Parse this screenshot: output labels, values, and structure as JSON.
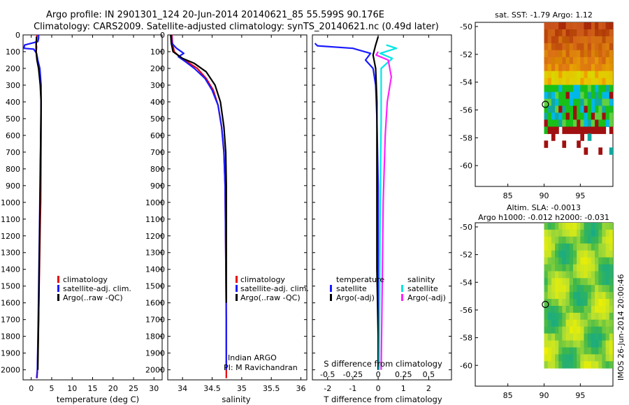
{
  "title": {
    "line1": "Argo profile: IN 2901301_124 20-Jun-2014 20140621_85 55.599S 90.176E",
    "line2": "Climatology: CARS2009. Satellite-adjusted climatology: synTS_20140621.nc (0.49d later)"
  },
  "depth_ticks": [
    "0",
    "100",
    "200",
    "300",
    "400",
    "500",
    "600",
    "700",
    "800",
    "900",
    "1000",
    "1100",
    "1200",
    "1300",
    "1400",
    "1500",
    "1600",
    "1700",
    "1800",
    "1900",
    "2000"
  ],
  "colors": {
    "climatology": "#e8000b",
    "satellite": "#1a1aff",
    "argo": "#000000",
    "satellite_s": "#00e5e5",
    "argo_s": "#ff22ff"
  },
  "chart_data": [
    {
      "type": "line",
      "name": "temperature",
      "xlabel": "temperature (deg C)",
      "ylabel": "",
      "xlim": [
        -2,
        32
      ],
      "ylim": [
        2060,
        0
      ],
      "xticks": [
        "0",
        "5",
        "10",
        "15",
        "20",
        "25",
        "30"
      ],
      "legend": {
        "position": "lower-middle",
        "entries": [
          "climatology",
          "satellite-adj. clim.",
          "Argo(..raw -QC)"
        ]
      },
      "series": [
        {
          "name": "climatology",
          "color": "#e8000b",
          "points": [
            [
              1.4,
              0
            ],
            [
              1.3,
              25
            ],
            [
              1.2,
              50
            ],
            [
              1.3,
              75
            ],
            [
              1.2,
              100
            ],
            [
              1.5,
              150
            ],
            [
              2.0,
              200
            ],
            [
              2.3,
              300
            ],
            [
              2.4,
              400
            ],
            [
              2.4,
              600
            ],
            [
              2.3,
              1000
            ],
            [
              2.2,
              1100
            ],
            [
              2.0,
              1400
            ],
            [
              1.7,
              1800
            ],
            [
              1.5,
              2000
            ],
            [
              1.3,
              2050
            ]
          ]
        },
        {
          "name": "satellite-adj. clim.",
          "color": "#1a1aff",
          "points": [
            [
              1.8,
              0
            ],
            [
              1.8,
              20
            ],
            [
              1.6,
              40
            ],
            [
              -1.6,
              60
            ],
            [
              -1.8,
              80
            ],
            [
              0.6,
              85
            ],
            [
              1.3,
              110
            ],
            [
              1.6,
              150
            ],
            [
              2.1,
              200
            ],
            [
              2.4,
              300
            ],
            [
              2.4,
              500
            ],
            [
              2.2,
              800
            ],
            [
              2.0,
              1200
            ],
            [
              1.7,
              1700
            ],
            [
              1.5,
              2000
            ],
            [
              1.4,
              2050
            ]
          ]
        },
        {
          "name": "Argo(..raw -QC)",
          "color": "#000000",
          "points": [
            [
              1.3,
              10
            ],
            [
              1.2,
              60
            ],
            [
              1.2,
              100
            ],
            [
              1.4,
              150
            ],
            [
              1.8,
              200
            ],
            [
              2.2,
              300
            ],
            [
              2.4,
              400
            ],
            [
              2.3,
              600
            ],
            [
              2.2,
              900
            ],
            [
              2.0,
              1300
            ],
            [
              1.8,
              1700
            ],
            [
              1.6,
              2000
            ]
          ]
        }
      ]
    },
    {
      "type": "line",
      "name": "salinity",
      "xlabel": "salinity",
      "ylabel": "",
      "xlim": [
        33.75,
        36.1
      ],
      "ylim": [
        2060,
        0
      ],
      "xticks": [
        "34",
        "34.5",
        "35",
        "35.5",
        "36"
      ],
      "annotation": {
        "line1": "Indian ARGO",
        "line2": "PI: M Ravichandran"
      },
      "legend": {
        "position": "lower-middle",
        "entries": [
          "climatology",
          "satellite-adj. clim.",
          "Argo(..raw -QC)"
        ]
      },
      "series": [
        {
          "name": "climatology",
          "color": "#e8000b",
          "points": [
            [
              33.82,
              0
            ],
            [
              33.83,
              50
            ],
            [
              33.86,
              100
            ],
            [
              33.98,
              140
            ],
            [
              34.08,
              160
            ],
            [
              34.25,
              200
            ],
            [
              34.4,
              260
            ],
            [
              34.52,
              330
            ],
            [
              34.6,
              420
            ],
            [
              34.66,
              550
            ],
            [
              34.7,
              700
            ],
            [
              34.72,
              900
            ],
            [
              34.73,
              1300
            ],
            [
              34.74,
              1700
            ],
            [
              34.74,
              2000
            ],
            [
              34.74,
              2050
            ]
          ]
        },
        {
          "name": "satellite-adj. clim.",
          "color": "#1a1aff",
          "points": [
            [
              33.81,
              0
            ],
            [
              33.82,
              50
            ],
            [
              33.9,
              80
            ],
            [
              34.02,
              110
            ],
            [
              33.93,
              130
            ],
            [
              34.05,
              160
            ],
            [
              34.2,
              200
            ],
            [
              34.38,
              260
            ],
            [
              34.5,
              330
            ],
            [
              34.6,
              420
            ],
            [
              34.66,
              550
            ],
            [
              34.7,
              700
            ],
            [
              34.72,
              900
            ],
            [
              34.73,
              1300
            ],
            [
              34.74,
              1700
            ],
            [
              34.74,
              2000
            ]
          ]
        },
        {
          "name": "Argo(..raw -QC)",
          "color": "#000000",
          "points": [
            [
              33.8,
              0
            ],
            [
              33.81,
              50
            ],
            [
              33.84,
              100
            ],
            [
              34.0,
              140
            ],
            [
              34.2,
              170
            ],
            [
              34.4,
              220
            ],
            [
              34.55,
              300
            ],
            [
              34.64,
              400
            ],
            [
              34.7,
              550
            ],
            [
              34.73,
              700
            ],
            [
              34.74,
              900
            ],
            [
              34.74,
              1300
            ],
            [
              34.74,
              1600
            ]
          ]
        }
      ]
    },
    {
      "type": "line",
      "name": "differences",
      "xlabel": "T difference from climatology",
      "x2label": "S difference from climatology",
      "ylabel": "",
      "xlim": [
        -2.6,
        2.9
      ],
      "x2lim": [
        -0.65,
        0.725
      ],
      "ylim": [
        2060,
        0
      ],
      "xticks": [
        "-2",
        "-1",
        "0",
        "1",
        "2"
      ],
      "x2ticks": [
        "-0.5",
        "-0.25",
        "0",
        "0.25",
        "0.5"
      ],
      "legend": {
        "position": "lower-middle",
        "headers": [
          "temperature",
          "salinity"
        ],
        "entries": [
          "satellite",
          "Argo(-adj)",
          "satellite",
          "Argo(-adj)"
        ]
      },
      "series": [
        {
          "name": "temperature satellite",
          "color": "#1a1aff",
          "axis": "T",
          "points": [
            [
              -2.5,
              50
            ],
            [
              -2.4,
              65
            ],
            [
              -1.0,
              80
            ],
            [
              -0.3,
              110
            ],
            [
              -0.5,
              150
            ],
            [
              -0.2,
              200
            ],
            [
              -0.1,
              300
            ],
            [
              -0.05,
              500
            ],
            [
              0,
              900
            ],
            [
              0,
              1400
            ],
            [
              0,
              2000
            ]
          ]
        },
        {
          "name": "temperature Argo(-adj)",
          "color": "#000000",
          "axis": "T",
          "points": [
            [
              0,
              10
            ],
            [
              -0.1,
              60
            ],
            [
              -0.2,
              120
            ],
            [
              -0.1,
              200
            ],
            [
              -0.05,
              400
            ],
            [
              -0.05,
              900
            ],
            [
              -0.05,
              1400
            ],
            [
              0,
              1800
            ],
            [
              0,
              2000
            ]
          ]
        },
        {
          "name": "salinity satellite",
          "color": "#00e5e5",
          "axis": "S",
          "points": [
            [
              0.08,
              60
            ],
            [
              0.18,
              80
            ],
            [
              0.02,
              110
            ],
            [
              0.14,
              140
            ],
            [
              0.03,
              200
            ],
            [
              0.03,
              500
            ],
            [
              0.02,
              1000
            ],
            [
              0.01,
              2000
            ]
          ]
        },
        {
          "name": "salinity Argo(-adj)",
          "color": "#ff22ff",
          "axis": "S",
          "points": [
            [
              0,
              100
            ],
            [
              -0.02,
              120
            ],
            [
              0.1,
              150
            ],
            [
              0.13,
              250
            ],
            [
              0.09,
              400
            ],
            [
              0.07,
              600
            ],
            [
              0.05,
              1000
            ],
            [
              0.04,
              1500
            ],
            [
              0.03,
              2000
            ]
          ]
        }
      ]
    },
    {
      "type": "heatmap",
      "name": "sst-map",
      "title": "sat. SST: -1.79 Argo: 1.12",
      "xticks": [
        "85",
        "90",
        "95"
      ],
      "yticks": [
        "-50",
        "-52",
        "-54",
        "-56",
        "-58",
        "-60"
      ],
      "xlim": [
        80.5,
        99.5
      ],
      "ylim": [
        -61.5,
        -49.7
      ],
      "marker": {
        "lon": 90.18,
        "lat": -55.6
      }
    },
    {
      "type": "heatmap",
      "name": "sla-map",
      "title1": "Altim. SLA: -0.0013",
      "title2": "Argo h1000: -0.012 h2000: -0.031",
      "xticks": [
        "85",
        "90",
        "95"
      ],
      "yticks": [
        "-50",
        "-52",
        "-54",
        "-56",
        "-58",
        "-60"
      ],
      "xlim": [
        80.5,
        99.5
      ],
      "ylim": [
        -61.5,
        -49.7
      ],
      "marker": {
        "lon": 90.18,
        "lat": -55.6
      }
    }
  ],
  "stamp": "IMOS 26-Jun-2014 20:00:46"
}
